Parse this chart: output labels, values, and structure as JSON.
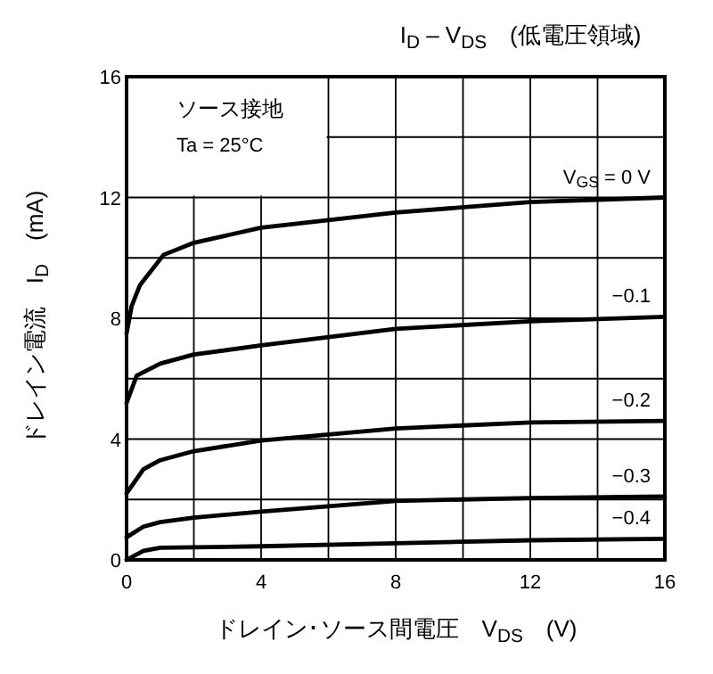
{
  "chart_data": {
    "type": "line",
    "title": "I$_{D}$ – V$_{DS}$　(低電圧領域)",
    "xlabel": "ドレイン･ソース間電圧　V$_{DS}$　(V)",
    "ylabel": "ドレイン電流　I$_{D}$　(mA)",
    "annotations": [
      "ソース接地",
      "Ta = 25°C"
    ],
    "xlim": [
      0,
      16
    ],
    "ylim": [
      0,
      16
    ],
    "xticks": [
      0,
      {
        "value": 2,
        "label": null
      },
      4,
      {
        "value": 6,
        "label": null
      },
      8,
      {
        "value": 10,
        "label": null
      },
      12,
      {
        "value": 14,
        "label": null
      },
      16
    ],
    "yticks": [
      0,
      {
        "value": 2,
        "label": null
      },
      4,
      {
        "value": 6,
        "label": null
      },
      8,
      {
        "value": 10,
        "label": null
      },
      12,
      {
        "value": 14,
        "label": null
      },
      16
    ],
    "grid": true,
    "marker": "none",
    "line_style": "solid",
    "series": [
      {
        "name": "V$_{GS}$ = 0 V",
        "color": "#000000",
        "x": [
          0,
          0.15,
          0.4,
          1.1,
          2,
          4,
          8,
          12,
          16
        ],
        "values": [
          7.5,
          8.4,
          9.1,
          10.1,
          10.5,
          11.0,
          11.5,
          11.85,
          12.0
        ]
      },
      {
        "name": "−0.1",
        "color": "#000000",
        "x": [
          0,
          0.3,
          1,
          2,
          4,
          8,
          12,
          16
        ],
        "values": [
          5.2,
          6.1,
          6.5,
          6.8,
          7.1,
          7.65,
          7.9,
          8.05
        ]
      },
      {
        "name": "−0.2",
        "color": "#000000",
        "x": [
          0,
          0.5,
          1,
          2,
          4,
          8,
          12,
          16
        ],
        "values": [
          2.2,
          3.0,
          3.3,
          3.6,
          3.95,
          4.35,
          4.55,
          4.6
        ]
      },
      {
        "name": "−0.3",
        "color": "#000000",
        "x": [
          0,
          0.5,
          1,
          2,
          4,
          8,
          12,
          16
        ],
        "values": [
          0.75,
          1.1,
          1.25,
          1.4,
          1.6,
          1.95,
          2.05,
          2.1
        ]
      },
      {
        "name": "−0.4",
        "color": "#000000",
        "x": [
          0,
          0.5,
          1,
          4,
          8,
          12,
          16
        ],
        "values": [
          0,
          0.3,
          0.4,
          0.45,
          0.55,
          0.65,
          0.7
        ]
      }
    ]
  }
}
